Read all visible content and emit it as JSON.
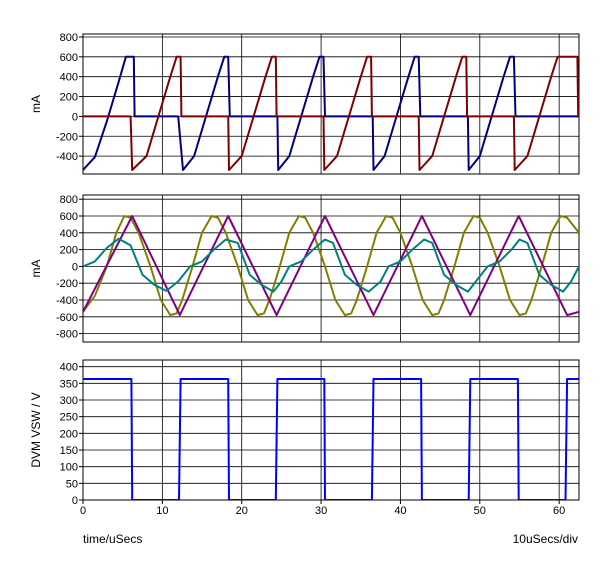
{
  "chart_data": [
    {
      "type": "line",
      "ylabel": "mA",
      "xlim": [
        0,
        62.5
      ],
      "ylim": [
        -580,
        830
      ],
      "yticks": [
        800,
        600,
        400,
        200,
        0,
        -200,
        -400
      ],
      "grid": true,
      "series": [
        {
          "color": "#00007f",
          "points": [
            [
              0,
              -540
            ],
            [
              1.5,
              -410
            ],
            [
              3,
              -50
            ],
            [
              4.5,
              350
            ],
            [
              5.4,
              600
            ],
            [
              6.4,
              600
            ],
            [
              6.5,
              0
            ],
            [
              12,
              0
            ],
            [
              12.6,
              -540
            ],
            [
              14,
              -400
            ],
            [
              15.5,
              0
            ],
            [
              17,
              400
            ],
            [
              17.8,
              600
            ],
            [
              18.3,
              600
            ],
            [
              18.5,
              0
            ],
            [
              24.5,
              0
            ],
            [
              24.6,
              -540
            ],
            [
              26,
              -400
            ],
            [
              27.5,
              0
            ],
            [
              29,
              400
            ],
            [
              29.8,
              600
            ],
            [
              30.3,
              600
            ],
            [
              30.5,
              0
            ],
            [
              36.5,
              0
            ],
            [
              36.6,
              -540
            ],
            [
              38,
              -400
            ],
            [
              39.5,
              0
            ],
            [
              41,
              400
            ],
            [
              41.8,
              600
            ],
            [
              42.3,
              600
            ],
            [
              42.5,
              0
            ],
            [
              48.5,
              0
            ],
            [
              48.6,
              -540
            ],
            [
              50,
              -400
            ],
            [
              51.5,
              0
            ],
            [
              53,
              400
            ],
            [
              53.8,
              600
            ],
            [
              54.3,
              600
            ],
            [
              54.5,
              0
            ],
            [
              62.5,
              0
            ]
          ]
        },
        {
          "color": "#7f0000",
          "points": [
            [
              0,
              0
            ],
            [
              6,
              0
            ],
            [
              6.2,
              -540
            ],
            [
              8,
              -400
            ],
            [
              9.5,
              0
            ],
            [
              11,
              400
            ],
            [
              11.8,
              600
            ],
            [
              12.3,
              600
            ],
            [
              12.4,
              0
            ],
            [
              18.3,
              0
            ],
            [
              18.4,
              -540
            ],
            [
              20,
              -400
            ],
            [
              21.5,
              0
            ],
            [
              23,
              400
            ],
            [
              23.8,
              600
            ],
            [
              24.3,
              600
            ],
            [
              24.4,
              0
            ],
            [
              30.3,
              0
            ],
            [
              30.4,
              -540
            ],
            [
              32,
              -400
            ],
            [
              33.5,
              0
            ],
            [
              35,
              400
            ],
            [
              35.8,
              600
            ],
            [
              36.3,
              600
            ],
            [
              36.4,
              0
            ],
            [
              42.3,
              0
            ],
            [
              42.4,
              -540
            ],
            [
              44,
              -400
            ],
            [
              45.5,
              0
            ],
            [
              47,
              400
            ],
            [
              47.8,
              600
            ],
            [
              48.3,
              600
            ],
            [
              48.4,
              0
            ],
            [
              54.3,
              0
            ],
            [
              54.4,
              -540
            ],
            [
              56,
              -400
            ],
            [
              57.5,
              0
            ],
            [
              59,
              400
            ],
            [
              59.8,
              600
            ],
            [
              62.3,
              600
            ],
            [
              62.4,
              0
            ]
          ]
        }
      ]
    },
    {
      "type": "line",
      "ylabel": "mA",
      "xlim": [
        0,
        62.5
      ],
      "ylim": [
        -900,
        850
      ],
      "yticks": [
        800,
        600,
        400,
        200,
        0,
        -200,
        -400,
        -600,
        -800
      ],
      "grid": true,
      "series": [
        {
          "color": "#808000",
          "points": [
            [
              0,
              -540
            ],
            [
              1.5,
              -350
            ],
            [
              3,
              0
            ],
            [
              4.2,
              400
            ],
            [
              5.2,
              600
            ],
            [
              6,
              580
            ],
            [
              7,
              400
            ],
            [
              8.5,
              0
            ],
            [
              9.8,
              -400
            ],
            [
              11,
              -580
            ],
            [
              11.8,
              -560
            ],
            [
              12.5,
              -400
            ],
            [
              13.8,
              0
            ],
            [
              15,
              400
            ],
            [
              16.2,
              600
            ],
            [
              17,
              580
            ],
            [
              18,
              400
            ],
            [
              19.5,
              0
            ],
            [
              20.8,
              -400
            ],
            [
              22,
              -580
            ],
            [
              22.8,
              -560
            ],
            [
              23.5,
              -400
            ],
            [
              24.8,
              0
            ],
            [
              26,
              400
            ],
            [
              27.2,
              600
            ],
            [
              28,
              580
            ],
            [
              29,
              400
            ],
            [
              30.5,
              0
            ],
            [
              31.8,
              -400
            ],
            [
              33,
              -580
            ],
            [
              33.8,
              -560
            ],
            [
              34.5,
              -400
            ],
            [
              35.8,
              0
            ],
            [
              37,
              400
            ],
            [
              38.2,
              600
            ],
            [
              39,
              580
            ],
            [
              40,
              400
            ],
            [
              41.5,
              0
            ],
            [
              42.8,
              -400
            ],
            [
              44,
              -580
            ],
            [
              44.8,
              -560
            ],
            [
              45.5,
              -400
            ],
            [
              46.8,
              0
            ],
            [
              48,
              400
            ],
            [
              49.2,
              600
            ],
            [
              50,
              580
            ],
            [
              51,
              400
            ],
            [
              52.5,
              0
            ],
            [
              53.8,
              -400
            ],
            [
              55,
              -580
            ],
            [
              55.8,
              -560
            ],
            [
              56.5,
              -400
            ],
            [
              57.8,
              0
            ],
            [
              59,
              400
            ],
            [
              60.2,
              600
            ],
            [
              61,
              580
            ],
            [
              62.5,
              400
            ]
          ]
        },
        {
          "color": "#800080",
          "points": [
            [
              0,
              -540
            ],
            [
              6.2,
              600
            ],
            [
              12.2,
              -580
            ],
            [
              18.3,
              600
            ],
            [
              24.4,
              -580
            ],
            [
              30.5,
              600
            ],
            [
              36.6,
              -580
            ],
            [
              42.7,
              600
            ],
            [
              48.8,
              -580
            ],
            [
              54.9,
              600
            ],
            [
              61,
              -580
            ],
            [
              62.5,
              -540
            ]
          ]
        },
        {
          "color": "#008080",
          "points": [
            [
              0,
              0
            ],
            [
              1.5,
              60
            ],
            [
              3,
              220
            ],
            [
              4.5,
              330
            ],
            [
              6,
              250
            ],
            [
              7.5,
              -100
            ],
            [
              9,
              -220
            ],
            [
              10.5,
              -290
            ],
            [
              12,
              -180
            ],
            [
              13.5,
              0
            ],
            [
              15,
              60
            ],
            [
              16.5,
              200
            ],
            [
              18,
              320
            ],
            [
              19.5,
              280
            ],
            [
              21,
              -100
            ],
            [
              22.5,
              -220
            ],
            [
              24,
              -300
            ],
            [
              25,
              -180
            ],
            [
              26,
              0
            ],
            [
              27.5,
              60
            ],
            [
              29,
              200
            ],
            [
              30.5,
              320
            ],
            [
              31.5,
              280
            ],
            [
              33,
              -100
            ],
            [
              34.5,
              -220
            ],
            [
              36,
              -300
            ],
            [
              37.5,
              -180
            ],
            [
              38.5,
              0
            ],
            [
              40,
              60
            ],
            [
              41.5,
              200
            ],
            [
              43,
              320
            ],
            [
              44,
              280
            ],
            [
              45.5,
              -100
            ],
            [
              47,
              -220
            ],
            [
              48.5,
              -300
            ],
            [
              49.5,
              -180
            ],
            [
              51,
              0
            ],
            [
              52.5,
              60
            ],
            [
              54,
              200
            ],
            [
              55,
              320
            ],
            [
              56,
              280
            ],
            [
              57.5,
              -100
            ],
            [
              59,
              -220
            ],
            [
              60.5,
              -300
            ],
            [
              61.5,
              -180
            ],
            [
              62.5,
              0
            ]
          ]
        }
      ]
    },
    {
      "type": "line",
      "ylabel": "DVM VSW / V",
      "xlim": [
        0,
        62.5
      ],
      "ylim": [
        0,
        420
      ],
      "yticks": [
        400,
        350,
        300,
        250,
        200,
        150,
        100,
        50,
        0
      ],
      "xticks": [
        0,
        10,
        20,
        30,
        40,
        50,
        60
      ],
      "grid": true,
      "series": [
        {
          "color": "#0000ff",
          "points": [
            [
              0,
              363
            ],
            [
              6.1,
              363
            ],
            [
              6.2,
              0
            ],
            [
              12.1,
              0
            ],
            [
              12.3,
              363
            ],
            [
              18.3,
              363
            ],
            [
              18.4,
              0
            ],
            [
              24.3,
              0
            ],
            [
              24.5,
              363
            ],
            [
              30.4,
              363
            ],
            [
              30.5,
              0
            ],
            [
              36.4,
              0
            ],
            [
              36.6,
              363
            ],
            [
              42.6,
              363
            ],
            [
              42.7,
              0
            ],
            [
              48.6,
              0
            ],
            [
              48.8,
              363
            ],
            [
              54.8,
              363
            ],
            [
              54.9,
              0
            ],
            [
              60.8,
              0
            ],
            [
              61,
              363
            ],
            [
              62.5,
              363
            ]
          ]
        }
      ]
    }
  ],
  "footer": {
    "xlabel": "time/uSecs",
    "scale": "10uSecs/div"
  }
}
